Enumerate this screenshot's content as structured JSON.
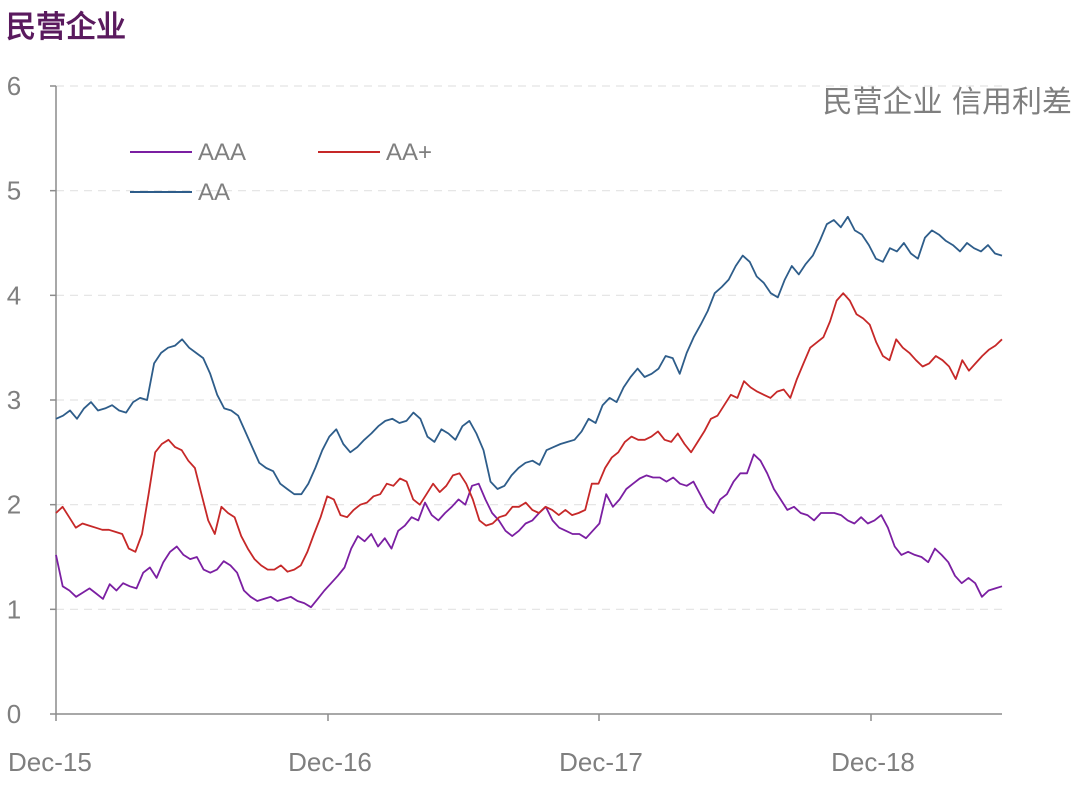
{
  "header": {
    "title": "民营企业"
  },
  "chart_data": {
    "type": "line",
    "title": "民营企业 信用利差",
    "xlabel": "",
    "ylabel": "",
    "ylim": [
      0,
      6
    ],
    "yticks": [
      "0",
      "1",
      "2",
      "3",
      "4",
      "5",
      "6"
    ],
    "xticks": [
      "Dec-15",
      "Dec-16",
      "Dec-17",
      "Dec-18"
    ],
    "x_range": [
      "Dec-15",
      "Jun-19"
    ],
    "grid": "horizontal dashed",
    "legend": "top-left",
    "colors": {
      "AAA": "#7b1fa2",
      "AA+": "#c62828",
      "AA": "#2e5d8a"
    },
    "series": [
      {
        "name": "AAA",
        "values": [
          1.52,
          1.22,
          1.18,
          1.12,
          1.16,
          1.2,
          1.15,
          1.1,
          1.24,
          1.18,
          1.25,
          1.22,
          1.2,
          1.35,
          1.4,
          1.3,
          1.45,
          1.55,
          1.6,
          1.52,
          1.48,
          1.5,
          1.38,
          1.35,
          1.38,
          1.46,
          1.42,
          1.35,
          1.18,
          1.12,
          1.08,
          1.1,
          1.12,
          1.08,
          1.1,
          1.12,
          1.08,
          1.06,
          1.02,
          1.1,
          1.18,
          1.25,
          1.32,
          1.4,
          1.58,
          1.7,
          1.65,
          1.72,
          1.6,
          1.68,
          1.58,
          1.75,
          1.8,
          1.88,
          1.85,
          2.02,
          1.9,
          1.85,
          1.92,
          1.98,
          2.05,
          2.0,
          2.18,
          2.2,
          2.05,
          1.92,
          1.85,
          1.75,
          1.7,
          1.75,
          1.82,
          1.85,
          1.92,
          1.98,
          1.85,
          1.78,
          1.75,
          1.72,
          1.72,
          1.68,
          1.75,
          1.82,
          2.1,
          1.98,
          2.05,
          2.15,
          2.2,
          2.25,
          2.28,
          2.26,
          2.26,
          2.22,
          2.26,
          2.2,
          2.18,
          2.22,
          2.1,
          1.98,
          1.92,
          2.05,
          2.1,
          2.22,
          2.3,
          2.3,
          2.48,
          2.42,
          2.3,
          2.15,
          2.05,
          1.95,
          1.98,
          1.92,
          1.9,
          1.85,
          1.92,
          1.92,
          1.92,
          1.9,
          1.85,
          1.82,
          1.88,
          1.82,
          1.85,
          1.9,
          1.78,
          1.6,
          1.52,
          1.55,
          1.52,
          1.5,
          1.45,
          1.58,
          1.52,
          1.45,
          1.32,
          1.25,
          1.3,
          1.25,
          1.12,
          1.18,
          1.2,
          1.22
        ]
      },
      {
        "name": "AA+",
        "values": [
          1.92,
          1.98,
          1.88,
          1.78,
          1.82,
          1.8,
          1.78,
          1.76,
          1.76,
          1.74,
          1.72,
          1.58,
          1.55,
          1.72,
          2.1,
          2.5,
          2.58,
          2.62,
          2.55,
          2.52,
          2.42,
          2.35,
          2.1,
          1.85,
          1.72,
          1.98,
          1.92,
          1.88,
          1.7,
          1.58,
          1.48,
          1.42,
          1.38,
          1.38,
          1.42,
          1.36,
          1.38,
          1.42,
          1.55,
          1.72,
          1.88,
          2.08,
          2.05,
          1.9,
          1.88,
          1.95,
          2.0,
          2.02,
          2.08,
          2.1,
          2.2,
          2.18,
          2.25,
          2.22,
          2.05,
          2.0,
          2.1,
          2.2,
          2.12,
          2.18,
          2.28,
          2.3,
          2.2,
          2.05,
          1.85,
          1.8,
          1.82,
          1.88,
          1.9,
          1.98,
          1.98,
          2.02,
          1.95,
          1.92,
          1.98,
          1.95,
          1.9,
          1.95,
          1.9,
          1.92,
          1.95,
          2.2,
          2.2,
          2.35,
          2.45,
          2.5,
          2.6,
          2.65,
          2.62,
          2.62,
          2.65,
          2.7,
          2.62,
          2.6,
          2.68,
          2.58,
          2.5,
          2.6,
          2.7,
          2.82,
          2.85,
          2.95,
          3.05,
          3.02,
          3.18,
          3.12,
          3.08,
          3.05,
          3.02,
          3.08,
          3.1,
          3.02,
          3.2,
          3.35,
          3.5,
          3.55,
          3.6,
          3.75,
          3.95,
          4.02,
          3.95,
          3.82,
          3.78,
          3.72,
          3.55,
          3.42,
          3.38,
          3.58,
          3.5,
          3.45,
          3.38,
          3.32,
          3.35,
          3.42,
          3.38,
          3.32,
          3.2,
          3.38,
          3.28,
          3.35,
          3.42,
          3.48,
          3.52,
          3.58
        ]
      },
      {
        "name": "AA",
        "values": [
          2.82,
          2.85,
          2.9,
          2.82,
          2.92,
          2.98,
          2.9,
          2.92,
          2.95,
          2.9,
          2.88,
          2.98,
          3.02,
          3.0,
          3.35,
          3.45,
          3.5,
          3.52,
          3.58,
          3.5,
          3.45,
          3.4,
          3.25,
          3.05,
          2.92,
          2.9,
          2.85,
          2.7,
          2.55,
          2.4,
          2.35,
          2.32,
          2.2,
          2.15,
          2.1,
          2.1,
          2.2,
          2.35,
          2.52,
          2.65,
          2.72,
          2.58,
          2.5,
          2.55,
          2.62,
          2.68,
          2.75,
          2.8,
          2.82,
          2.78,
          2.8,
          2.88,
          2.82,
          2.65,
          2.6,
          2.72,
          2.68,
          2.62,
          2.75,
          2.8,
          2.68,
          2.52,
          2.22,
          2.15,
          2.18,
          2.28,
          2.35,
          2.4,
          2.42,
          2.38,
          2.52,
          2.55,
          2.58,
          2.6,
          2.62,
          2.7,
          2.82,
          2.78,
          2.95,
          3.02,
          2.98,
          3.12,
          3.22,
          3.3,
          3.22,
          3.25,
          3.3,
          3.42,
          3.4,
          3.25,
          3.45,
          3.6,
          3.72,
          3.85,
          4.02,
          4.08,
          4.15,
          4.28,
          4.38,
          4.32,
          4.18,
          4.12,
          4.02,
          3.98,
          4.15,
          4.28,
          4.2,
          4.3,
          4.38,
          4.52,
          4.68,
          4.72,
          4.65,
          4.75,
          4.62,
          4.58,
          4.48,
          4.35,
          4.32,
          4.45,
          4.42,
          4.5,
          4.4,
          4.35,
          4.55,
          4.62,
          4.58,
          4.52,
          4.48,
          4.42,
          4.5,
          4.45,
          4.42,
          4.48,
          4.4,
          4.38
        ]
      }
    ]
  }
}
